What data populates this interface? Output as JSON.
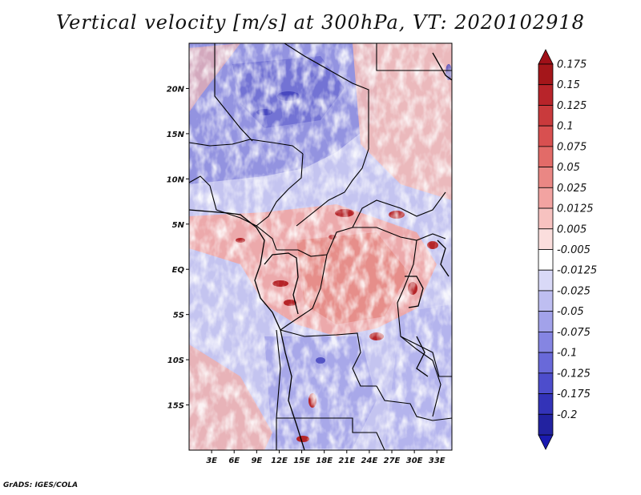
{
  "title": "Vertical velocity [m/s] at 300hPa, VT: 2020102918",
  "credit": "GrADS: IGES/COLA",
  "map": {
    "projection": "latlon",
    "lon_range": [
      0,
      35
    ],
    "lat_range": [
      -20,
      25
    ],
    "lon_ticks": [
      {
        "value": 3,
        "label": "3E"
      },
      {
        "value": 6,
        "label": "6E"
      },
      {
        "value": 9,
        "label": "9E"
      },
      {
        "value": 12,
        "label": "12E"
      },
      {
        "value": 15,
        "label": "15E"
      },
      {
        "value": 18,
        "label": "18E"
      },
      {
        "value": 21,
        "label": "21E"
      },
      {
        "value": 24,
        "label": "24E"
      },
      {
        "value": 27,
        "label": "27E"
      },
      {
        "value": 30,
        "label": "30E"
      },
      {
        "value": 33,
        "label": "33E"
      }
    ],
    "lat_ticks": [
      {
        "value": 20,
        "label": "20N"
      },
      {
        "value": 15,
        "label": "15N"
      },
      {
        "value": 10,
        "label": "10N"
      },
      {
        "value": 5,
        "label": "5N"
      },
      {
        "value": 0,
        "label": "EQ"
      },
      {
        "value": -5,
        "label": "5S"
      },
      {
        "value": -10,
        "label": "10S"
      },
      {
        "value": -15,
        "label": "15S"
      }
    ]
  },
  "colorbar": {
    "levels": [
      {
        "label": "0.175",
        "color": "#a4161a"
      },
      {
        "label": "0.15",
        "color": "#b8242a"
      },
      {
        "label": "0.125",
        "color": "#c93a3c"
      },
      {
        "label": "0.1",
        "color": "#d85050"
      },
      {
        "label": "0.075",
        "color": "#e26b68"
      },
      {
        "label": "0.05",
        "color": "#ea8784"
      },
      {
        "label": "0.025",
        "color": "#f2a3a1"
      },
      {
        "label": "0.0125",
        "color": "#f7c2c0"
      },
      {
        "label": "0.005",
        "color": "#fbdedd"
      },
      {
        "label": "-0.005",
        "color": "#ffffff"
      },
      {
        "label": "-0.0125",
        "color": "#d9d9f7"
      },
      {
        "label": "-0.025",
        "color": "#bebef1"
      },
      {
        "label": "-0.05",
        "color": "#a2a2ea"
      },
      {
        "label": "-0.075",
        "color": "#8585e2"
      },
      {
        "label": "-0.1",
        "color": "#6969d9"
      },
      {
        "label": "-0.125",
        "color": "#4d4dcc"
      },
      {
        "label": "-0.175",
        "color": "#3333b8"
      },
      {
        "label": "-0.2",
        "color": "#2222a0"
      }
    ],
    "top_arrow_color": "#a01018",
    "bottom_arrow_color": "#1a1ab0"
  }
}
